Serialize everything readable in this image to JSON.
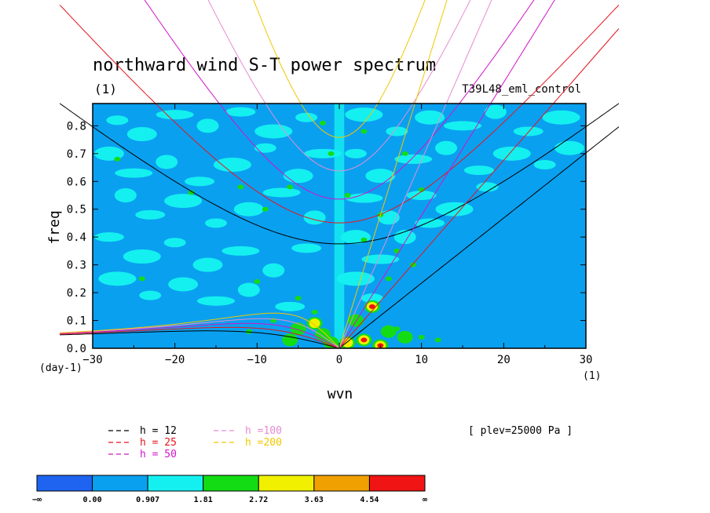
{
  "chart_data": {
    "type": "heatmap",
    "title": "northward wind S-T power spectrum",
    "subtitle_left": "(1)",
    "subtitle_right": "T39L48_eml_control",
    "xlabel": "wvn",
    "ylabel": "freq",
    "x_unit_label": "(1)",
    "y_unit_label": "(day-1)",
    "xlim": [
      -30,
      30
    ],
    "ylim": [
      0,
      0.88
    ],
    "x_ticks": [
      -30,
      -20,
      -10,
      0,
      10,
      20,
      30
    ],
    "y_ticks": [
      0.0,
      0.1,
      0.2,
      0.3,
      0.4,
      0.5,
      0.6,
      0.7,
      0.8
    ],
    "x_tick_labels": [
      "−30",
      "−20",
      "−10",
      "0",
      "10",
      "20",
      "30"
    ],
    "y_tick_labels": [
      "0.0",
      "0.1",
      "0.2",
      "0.3",
      "0.4",
      "0.5",
      "0.6",
      "0.7",
      "0.8"
    ],
    "annotation": "[ plev=25000 Pa ]",
    "colorbar": {
      "labels": [
        "−∞",
        "0.00",
        "0.907",
        "1.81",
        "2.72",
        "3.63",
        "4.54",
        "∞"
      ],
      "colors": [
        "#1e64f0",
        "#0aa0f0",
        "#14f0f0",
        "#14dc14",
        "#f0f000",
        "#f0a000",
        "#f01414"
      ]
    },
    "background_color": "#0aa0f0",
    "dispersion_curves": [
      {
        "label": "h = 12",
        "h": 12,
        "color": "#000000"
      },
      {
        "label": "h = 25",
        "h": 25,
        "color": "#e6141e"
      },
      {
        "label": "h = 50",
        "h": 50,
        "color": "#d214c8"
      },
      {
        "label": "h =100",
        "h": 100,
        "color": "#e68cd2"
      },
      {
        "label": "h =200",
        "h": 200,
        "color": "#f0c800"
      }
    ],
    "cold_patches": [
      [
        -27,
        0.82
      ],
      [
        -24,
        0.77
      ],
      [
        -20,
        0.84
      ],
      [
        -16,
        0.8
      ],
      [
        -12,
        0.85
      ],
      [
        -8,
        0.78
      ],
      [
        -4,
        0.83
      ],
      [
        -28,
        0.7
      ],
      [
        -25,
        0.63
      ],
      [
        -21,
        0.67
      ],
      [
        -17,
        0.6
      ],
      [
        -13,
        0.66
      ],
      [
        -9,
        0.72
      ],
      [
        -5,
        0.62
      ],
      [
        -2,
        0.7
      ],
      [
        -26,
        0.55
      ],
      [
        -23,
        0.48
      ],
      [
        -19,
        0.53
      ],
      [
        -15,
        0.45
      ],
      [
        -11,
        0.5
      ],
      [
        -7,
        0.56
      ],
      [
        -3,
        0.47
      ],
      [
        -28,
        0.4
      ],
      [
        -24,
        0.33
      ],
      [
        -20,
        0.38
      ],
      [
        -16,
        0.3
      ],
      [
        -12,
        0.35
      ],
      [
        -8,
        0.28
      ],
      [
        -4,
        0.36
      ],
      [
        -27,
        0.25
      ],
      [
        -23,
        0.19
      ],
      [
        -19,
        0.23
      ],
      [
        -15,
        0.17
      ],
      [
        -11,
        0.21
      ],
      [
        -6,
        0.15
      ],
      [
        3,
        0.84
      ],
      [
        7,
        0.78
      ],
      [
        11,
        0.83
      ],
      [
        15,
        0.8
      ],
      [
        19,
        0.85
      ],
      [
        23,
        0.78
      ],
      [
        27,
        0.83
      ],
      [
        2,
        0.7
      ],
      [
        5,
        0.62
      ],
      [
        9,
        0.68
      ],
      [
        13,
        0.72
      ],
      [
        17,
        0.64
      ],
      [
        21,
        0.7
      ],
      [
        25,
        0.66
      ],
      [
        28,
        0.72
      ],
      [
        3,
        0.54
      ],
      [
        6,
        0.47
      ],
      [
        10,
        0.55
      ],
      [
        14,
        0.5
      ],
      [
        18,
        0.58
      ],
      [
        2,
        0.4
      ],
      [
        5,
        0.32
      ],
      [
        8,
        0.4
      ],
      [
        11,
        0.45
      ],
      [
        2,
        0.25
      ],
      [
        4,
        0.18
      ]
    ],
    "hot_spots": [
      {
        "x": -3,
        "y": 0.09,
        "level": 4
      },
      {
        "x": -2,
        "y": 0.05,
        "level": 3
      },
      {
        "x": -5,
        "y": 0.07,
        "level": 3
      },
      {
        "x": -6,
        "y": 0.03,
        "level": 3
      },
      {
        "x": 4,
        "y": 0.15,
        "level": 6
      },
      {
        "x": 3,
        "y": 0.03,
        "level": 6
      },
      {
        "x": 5,
        "y": 0.01,
        "level": 6
      },
      {
        "x": 2,
        "y": 0.1,
        "level": 3
      },
      {
        "x": 6,
        "y": 0.06,
        "level": 3
      },
      {
        "x": 8,
        "y": 0.04,
        "level": 3
      },
      {
        "x": 1,
        "y": 0.02,
        "level": 4
      },
      {
        "x": -1,
        "y": 0.02,
        "level": 3
      }
    ],
    "green_dots": [
      [
        -27,
        0.68
      ],
      [
        -12,
        0.58
      ],
      [
        -18,
        0.56
      ],
      [
        -9,
        0.5
      ],
      [
        -6,
        0.58
      ],
      [
        -2,
        0.81
      ],
      [
        -24,
        0.25
      ],
      [
        -10,
        0.24
      ],
      [
        -5,
        0.18
      ],
      [
        -3,
        0.13
      ],
      [
        -8,
        0.1
      ],
      [
        -11,
        0.06
      ],
      [
        3,
        0.78
      ],
      [
        8,
        0.7
      ],
      [
        10,
        0.57
      ],
      [
        5,
        0.48
      ],
      [
        7,
        0.35
      ],
      [
        9,
        0.3
      ],
      [
        6,
        0.25
      ],
      [
        7,
        0.07
      ],
      [
        10,
        0.04
      ],
      [
        12,
        0.03
      ],
      [
        3,
        0.39
      ],
      [
        1,
        0.55
      ],
      [
        -1,
        0.7
      ]
    ]
  }
}
